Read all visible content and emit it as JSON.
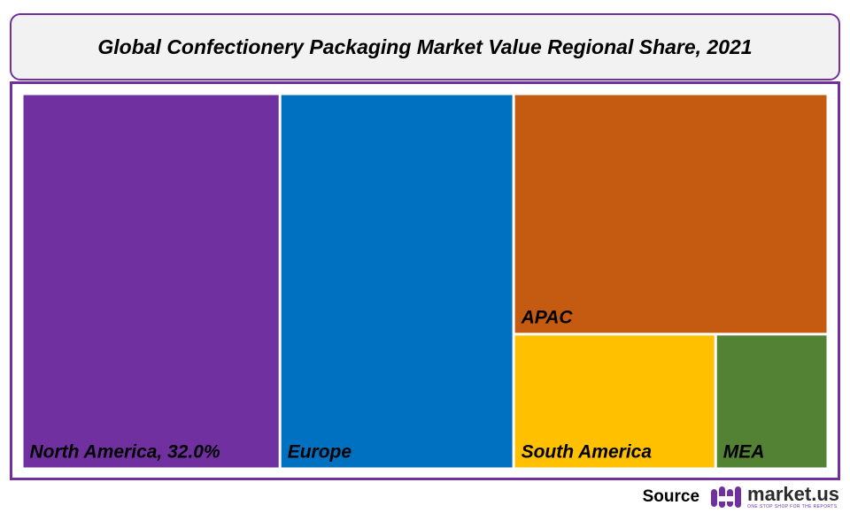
{
  "title": "Global Confectionery Packaging Market Value Regional Share, 2021",
  "chart_data": {
    "type": "treemap",
    "title": "Global Confectionery Packaging Market Value Regional Share, 2021",
    "unit": "%",
    "items": [
      {
        "name": "North America",
        "label": "North America, 32.0%",
        "value": 32.0,
        "color": "#7030a0"
      },
      {
        "name": "Europe",
        "label": "Europe",
        "value": 29.0,
        "color": "#0070c0"
      },
      {
        "name": "APAC",
        "label": "APAC",
        "value": 25.0,
        "color": "#c55a11"
      },
      {
        "name": "South America",
        "label": "South America",
        "value": 9.0,
        "color": "#ffc000"
      },
      {
        "name": "MEA",
        "label": "MEA",
        "value": 5.0,
        "color": "#548235"
      }
    ]
  },
  "footer": {
    "source_label": "Source",
    "logo_name": "market.us",
    "logo_tagline": "ONE STOP SHOP FOR THE REPORTS",
    "logo_icon": "market-us-logo-icon"
  }
}
